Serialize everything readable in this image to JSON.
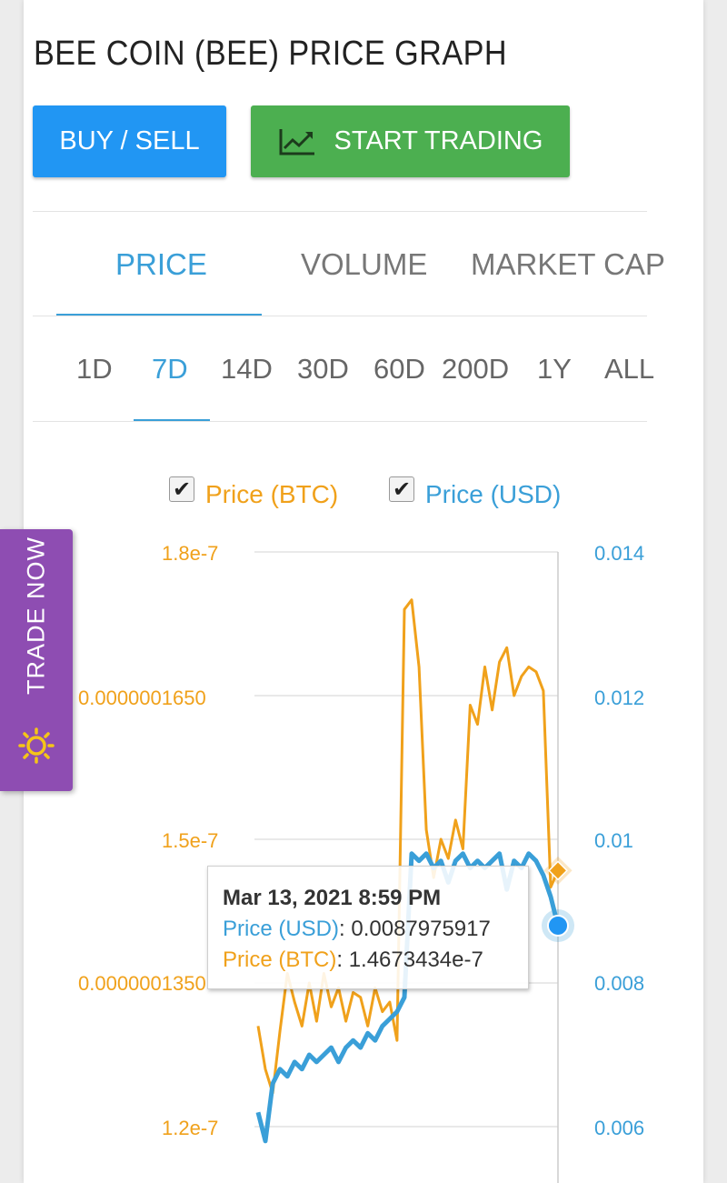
{
  "page": {
    "title": "BEE COIN (BEE) PRICE GRAPH",
    "buy_sell_label": "BUY / SELL",
    "start_trading_label": "START TRADING",
    "tabs": [
      "PRICE",
      "VOLUME",
      "MARKET CAP"
    ],
    "active_tab": "PRICE",
    "ranges": [
      "1D",
      "7D",
      "14D",
      "30D",
      "60D",
      "200D",
      "1Y",
      "ALL"
    ],
    "active_range": "7D",
    "trade_now_label": "TRADE NOW",
    "colors": {
      "btc": "#f0a11b",
      "usd": "#3a9fd8",
      "buy": "#2196f3",
      "trade": "#4caf50",
      "trade_now": "#8e4db2"
    }
  },
  "chart_data": {
    "type": "line",
    "title": "",
    "legend_position": "top",
    "grid": true,
    "series": [
      {
        "name": "Price (BTC)",
        "axis": "left",
        "ylim": [
          1.2e-07,
          1.8e-07
        ],
        "tick_labels": [
          "1.2e-7",
          "0.0000001350",
          "1.5e-7",
          "0.0000001650",
          "1.8e-7"
        ],
        "values": [
          1.305e-07,
          1.26e-07,
          1.235e-07,
          1.3e-07,
          1.36e-07,
          1.33e-07,
          1.305e-07,
          1.35e-07,
          1.31e-07,
          1.36e-07,
          1.325e-07,
          1.345e-07,
          1.31e-07,
          1.34e-07,
          1.335e-07,
          1.305e-07,
          1.345e-07,
          1.32e-07,
          1.33e-07,
          1.29e-07,
          1.74e-07,
          1.75e-07,
          1.68e-07,
          1.51e-07,
          1.46e-07,
          1.5e-07,
          1.48e-07,
          1.52e-07,
          1.49e-07,
          1.64e-07,
          1.62e-07,
          1.68e-07,
          1.635e-07,
          1.685e-07,
          1.7e-07,
          1.65e-07,
          1.67e-07,
          1.68e-07,
          1.675e-07,
          1.655e-07,
          1.45e-07,
          1.4673434e-07
        ]
      },
      {
        "name": "Price (USD)",
        "axis": "right",
        "ylim": [
          0.006,
          0.014
        ],
        "tick_labels": [
          "0.006",
          "0.008",
          "0.01",
          "0.012",
          "0.014"
        ],
        "values": [
          0.0062,
          0.0058,
          0.0066,
          0.0068,
          0.0067,
          0.0069,
          0.0068,
          0.007,
          0.0069,
          0.007,
          0.0071,
          0.0069,
          0.0071,
          0.0072,
          0.0071,
          0.0073,
          0.0072,
          0.0074,
          0.0075,
          0.0076,
          0.0078,
          0.0098,
          0.0097,
          0.0098,
          0.0096,
          0.0097,
          0.0094,
          0.0097,
          0.0098,
          0.0096,
          0.0097,
          0.0096,
          0.0097,
          0.0098,
          0.0093,
          0.0097,
          0.0096,
          0.0098,
          0.0097,
          0.0095,
          0.0092,
          0.0087975917
        ]
      }
    ],
    "tooltip": {
      "date": "Mar 13, 2021 8:59 PM",
      "rows": [
        {
          "label": "Price (USD)",
          "value": "0.0087975917"
        },
        {
          "label": "Price (BTC)",
          "value": "1.4673434e-7"
        }
      ]
    }
  }
}
